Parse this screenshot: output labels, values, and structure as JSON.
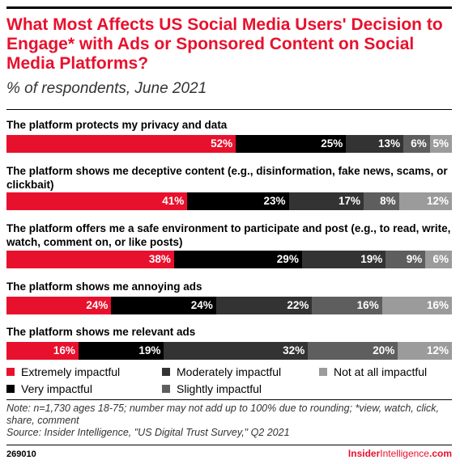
{
  "title": "What Most Affects US Social Media Users' Decision to Engage* with Ads or Sponsored Content on Social Media Platforms?",
  "subtitle": "% of respondents, June 2021",
  "chart_data": {
    "type": "bar",
    "stacked": true,
    "orientation": "horizontal",
    "categories": [
      "The platform protects my privacy and data",
      "The platform shows me deceptive content (e.g., disinformation, fake news, scams, or clickbait)",
      "The platform offers me a safe environment to participate and post (e.g., to read, write, watch, comment on, or like posts)",
      "The platform shows me annoying ads",
      "The platform shows me relevant ads"
    ],
    "series": [
      {
        "name": "Extremely impactful",
        "color": "#e8112d",
        "values": [
          52,
          41,
          38,
          24,
          16
        ]
      },
      {
        "name": "Very impactful",
        "color": "#000000",
        "values": [
          25,
          23,
          29,
          24,
          19
        ]
      },
      {
        "name": "Moderately impactful",
        "color": "#333333",
        "values": [
          13,
          17,
          19,
          22,
          32
        ]
      },
      {
        "name": "Slightly impactful",
        "color": "#5e5e5e",
        "values": [
          6,
          8,
          9,
          16,
          20
        ]
      },
      {
        "name": "Not at all impactful",
        "color": "#9b9b9b",
        "values": [
          5,
          12,
          6,
          16,
          12
        ]
      }
    ],
    "value_suffix": "%",
    "legend_position": "bottom"
  },
  "legend": [
    {
      "label": "Extremely impactful",
      "color": "#e8112d"
    },
    {
      "label": "Moderately impactful",
      "color": "#333333"
    },
    {
      "label": "Not at all impactful",
      "color": "#9b9b9b"
    },
    {
      "label": "Very impactful",
      "color": "#000000"
    },
    {
      "label": "Slightly impactful",
      "color": "#5e5e5e"
    }
  ],
  "note": "Note: n=1,730 ages 18-75; number may not add up to 100% due to rounding; *view, watch, click, share, comment",
  "source": "Source: Insider Intelligence, \"US Digital Trust Survey,\" Q2 2021",
  "footer_id": "269010",
  "brand": {
    "bold": "Insider",
    "thin": "Intelligence",
    "suffix": ".com"
  }
}
